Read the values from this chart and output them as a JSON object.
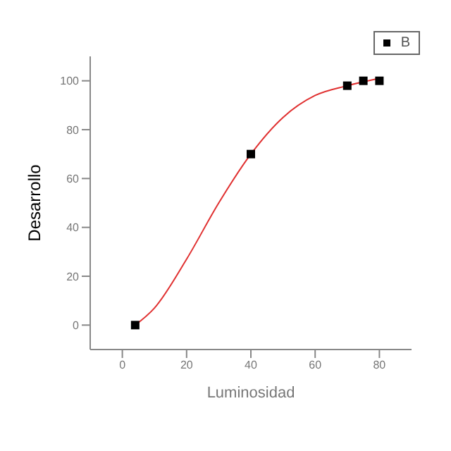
{
  "chart_data": {
    "type": "scatter",
    "xlabel": "Luminosidad",
    "ylabel": "Desarrollo",
    "xlim": [
      -10,
      90
    ],
    "xticks": [
      0,
      20,
      40,
      60,
      80
    ],
    "ylim": [
      -10,
      110
    ],
    "yticks": [
      0,
      20,
      40,
      60,
      80,
      100
    ],
    "legend": "top right",
    "marker": "square",
    "series": [
      {
        "name": "B",
        "color": "#000000",
        "x": [
          4,
          40,
          70,
          75,
          80
        ],
        "values": [
          0,
          70,
          98,
          100,
          100
        ]
      },
      {
        "type": "line",
        "color": "#e03030",
        "marker": "none",
        "x": [
          4,
          10,
          20,
          30,
          40,
          50,
          60,
          70,
          80
        ],
        "values": [
          0,
          7,
          27,
          50,
          70,
          85,
          94,
          98,
          101
        ]
      }
    ]
  }
}
